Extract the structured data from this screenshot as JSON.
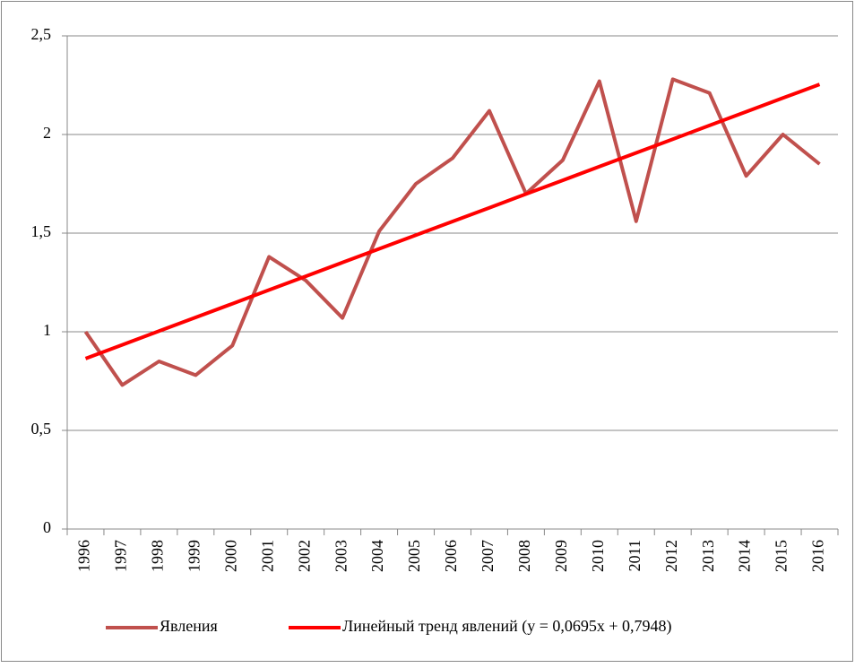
{
  "chart_data": {
    "type": "line",
    "categories": [
      "1996",
      "1997",
      "1998",
      "1999",
      "2000",
      "2001",
      "2002",
      "2003",
      "2004",
      "2005",
      "2006",
      "2007",
      "2008",
      "2009",
      "2010",
      "2011",
      "2012",
      "2013",
      "2014",
      "2015",
      "2016"
    ],
    "series": [
      {
        "name": "Явления",
        "color": "#c0504d",
        "values": [
          1.0,
          0.73,
          0.85,
          0.78,
          0.93,
          1.38,
          1.26,
          1.07,
          1.51,
          1.75,
          1.88,
          2.12,
          1.7,
          1.87,
          2.27,
          1.56,
          2.28,
          2.21,
          1.79,
          2.0,
          1.85
        ]
      },
      {
        "name": "Линейный тренд явлений (y = 0,0695x + 0,7948)",
        "color": "#ff0000",
        "values": [
          0.8643,
          0.9338,
          1.0033,
          1.0728,
          1.1423,
          1.2118,
          1.2813,
          1.3508,
          1.4203,
          1.4898,
          1.5593,
          1.6288,
          1.6983,
          1.7678,
          1.8373,
          1.9068,
          1.9763,
          2.0458,
          2.1153,
          2.1848,
          2.2543
        ]
      }
    ],
    "ylim": [
      0,
      2.5
    ],
    "yticks": [
      0,
      {
        "value": 0.5,
        "label": "0,5"
      },
      1,
      {
        "value": 1.5,
        "label": "1,5"
      },
      2,
      {
        "value": 2.5,
        "label": "2,5"
      }
    ],
    "grid": true,
    "legend": "bottom"
  }
}
